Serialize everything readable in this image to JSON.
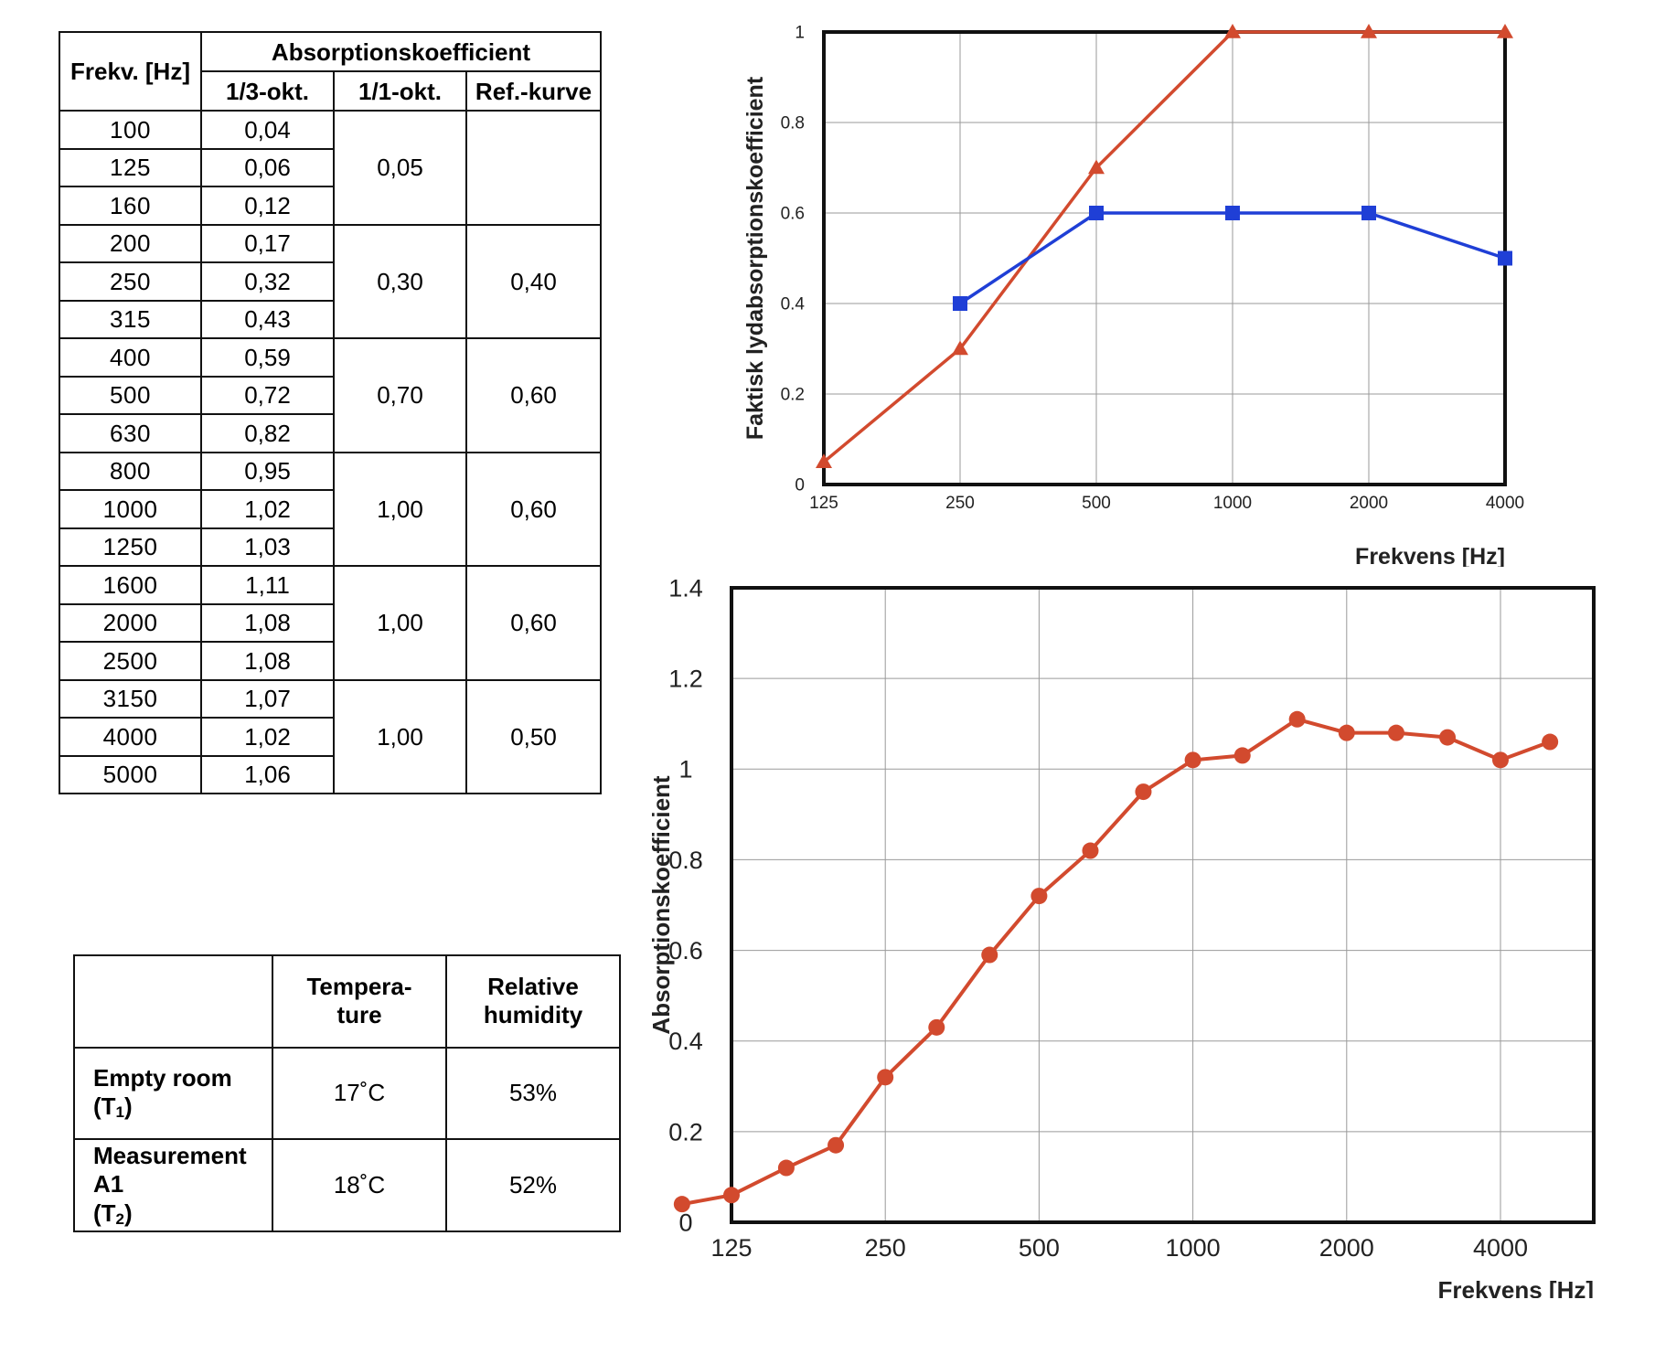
{
  "abs_table": {
    "header_freq": "Frekv. [Hz]",
    "header_group": "Absorptionskoefficient",
    "sub_headers": [
      "1/3-okt.",
      "1/1-okt.",
      "Ref.-kurve"
    ],
    "rows": [
      {
        "freq": "100",
        "third": "0,04"
      },
      {
        "freq": "125",
        "third": "0,06"
      },
      {
        "freq": "160",
        "third": "0,12"
      },
      {
        "freq": "200",
        "third": "0,17"
      },
      {
        "freq": "250",
        "third": "0,32"
      },
      {
        "freq": "315",
        "third": "0,43"
      },
      {
        "freq": "400",
        "third": "0,59"
      },
      {
        "freq": "500",
        "third": "0,72"
      },
      {
        "freq": "630",
        "third": "0,82"
      },
      {
        "freq": "800",
        "third": "0,95"
      },
      {
        "freq": "1000",
        "third": "1,02"
      },
      {
        "freq": "1250",
        "third": "1,03"
      },
      {
        "freq": "1600",
        "third": "1,11"
      },
      {
        "freq": "2000",
        "third": "1,08"
      },
      {
        "freq": "2500",
        "third": "1,08"
      },
      {
        "freq": "3150",
        "third": "1,07"
      },
      {
        "freq": "4000",
        "third": "1,02"
      },
      {
        "freq": "5000",
        "third": "1,06"
      }
    ],
    "octave_groups": [
      {
        "octave": "0,05",
        "ref": ""
      },
      {
        "octave": "0,30",
        "ref": "0,40"
      },
      {
        "octave": "0,70",
        "ref": "0,60"
      },
      {
        "octave": "1,00",
        "ref": "0,60"
      },
      {
        "octave": "1,00",
        "ref": "0,60"
      },
      {
        "octave": "1,00",
        "ref": "0,50"
      }
    ]
  },
  "climate_table": {
    "header_temp_1": "Tempera-",
    "header_temp_2": "ture",
    "header_hum_1": "Relative",
    "header_hum_2": "humidity",
    "row1_label": "Empty room",
    "row1_sub_pre": "(T",
    "row1_sub_num": "1",
    "row1_sub_post": ")",
    "row1_temp": "17˚C",
    "row1_hum": "53%",
    "row2_label_1": "Measurement",
    "row2_label_2": "A1",
    "row2_sub_pre": "(T",
    "row2_sub_num": "2",
    "row2_sub_post": ")",
    "row2_temp": "18˚C",
    "row2_hum": "52%"
  },
  "chart_data": [
    {
      "type": "line",
      "xlabel": "Frekvens [Hz]",
      "ylabel": "Faktisk lydabsorptionskoefficient",
      "x_ticks": [
        "125",
        "250",
        "500",
        "1000",
        "2000",
        "4000"
      ],
      "y_ticks": [
        "0",
        "0.2",
        "0.4",
        "0.6",
        "0.8",
        "1"
      ],
      "ylim": [
        0,
        1
      ],
      "grid": true,
      "series": [
        {
          "color": "#d24a2e",
          "marker": "triangle",
          "x": [
            125,
            250,
            500,
            1000,
            2000,
            4000
          ],
          "y": [
            0.05,
            0.3,
            0.7,
            1.0,
            1.0,
            1.0
          ]
        },
        {
          "color": "#1f3fd6",
          "marker": "square",
          "x": [
            250,
            500,
            1000,
            2000,
            4000
          ],
          "y": [
            0.4,
            0.6,
            0.6,
            0.6,
            0.5
          ]
        }
      ]
    },
    {
      "type": "line",
      "xlabel": "Frekvens [Hz]",
      "ylabel": "Absorptionskoefficient",
      "x_ticks": [
        "125",
        "250",
        "500",
        "1000",
        "2000",
        "4000"
      ],
      "y_ticks": [
        "0",
        "0.2",
        "0.4",
        "0.6",
        "0.8",
        "1",
        "1.2",
        "1.4"
      ],
      "ylim": [
        0,
        1.4
      ],
      "grid": true,
      "series": [
        {
          "color": "#d24a2e",
          "marker": "circle",
          "x": [
            100,
            125,
            160,
            200,
            250,
            315,
            400,
            500,
            630,
            800,
            1000,
            1250,
            1600,
            2000,
            2500,
            3150,
            4000,
            5000
          ],
          "y": [
            0.04,
            0.06,
            0.12,
            0.17,
            0.32,
            0.43,
            0.59,
            0.72,
            0.82,
            0.95,
            1.02,
            1.03,
            1.11,
            1.08,
            1.08,
            1.07,
            1.02,
            1.06
          ]
        }
      ]
    }
  ]
}
